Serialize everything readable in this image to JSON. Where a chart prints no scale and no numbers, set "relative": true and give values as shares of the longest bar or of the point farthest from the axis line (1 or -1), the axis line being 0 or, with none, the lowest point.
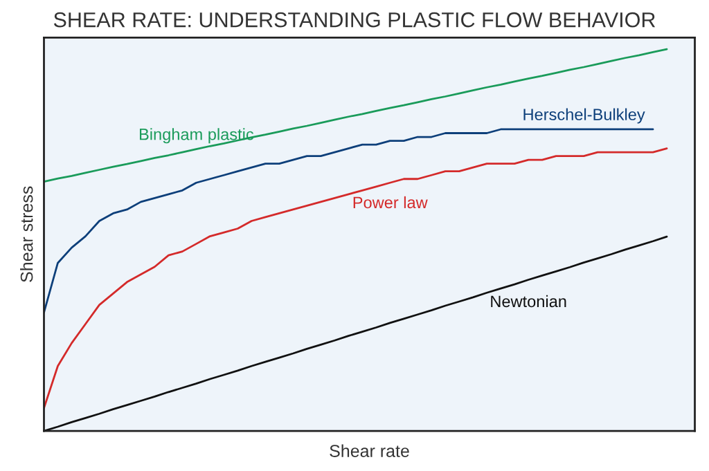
{
  "chart_data": {
    "type": "line",
    "title": "SHEAR RATE: UNDERSTANDING PLASTIC FLOW BEHAVIOR",
    "xlabel": "Shear rate",
    "ylabel": "Shear stress",
    "relative": true,
    "legend": false,
    "line_style": "solid",
    "marker": "none",
    "categories": [
      null,
      null,
      null,
      null,
      null,
      null,
      null,
      null,
      null,
      null,
      null,
      null,
      null,
      null,
      null,
      null,
      null,
      null,
      null,
      null,
      null,
      null,
      null,
      null,
      null,
      null,
      null,
      null,
      null,
      null,
      null,
      null,
      null,
      null,
      null,
      null,
      null,
      null,
      null,
      null,
      null,
      null,
      null,
      null,
      null,
      null
    ],
    "series": [
      {
        "name": "Bingham plastic",
        "color": "#1a9b5a",
        "values": [
          0.653,
          0.661,
          0.668,
          0.676,
          0.684,
          0.692,
          0.699,
          0.707,
          0.715,
          0.722,
          0.73,
          0.738,
          0.746,
          0.753,
          0.761,
          0.769,
          0.776,
          0.784,
          0.792,
          0.799,
          0.807,
          0.815,
          0.823,
          0.83,
          0.838,
          0.846,
          0.853,
          0.861,
          0.869,
          0.876,
          0.884,
          0.892,
          0.9,
          0.907,
          0.915,
          0.923,
          0.93,
          0.938,
          0.946,
          0.953,
          0.961,
          0.969,
          0.977,
          0.984,
          0.992,
          1.0
        ]
      },
      {
        "name": "Herschel-Bulkley",
        "color": "#0d3f7a",
        "values": [
          0.31,
          0.44,
          0.48,
          0.51,
          0.55,
          0.57,
          0.58,
          0.6,
          0.61,
          0.62,
          0.63,
          0.65,
          0.66,
          0.67,
          0.68,
          0.69,
          0.7,
          0.7,
          0.71,
          0.72,
          0.72,
          0.73,
          0.74,
          0.75,
          0.75,
          0.76,
          0.76,
          0.77,
          0.77,
          0.78,
          0.78,
          0.78,
          0.78,
          0.79,
          0.79,
          0.79,
          0.79,
          0.79,
          0.79,
          0.79,
          0.79,
          0.79,
          0.79,
          0.79,
          0.79,
          null
        ]
      },
      {
        "name": "Power law",
        "color": "#d42a2a",
        "values": [
          0.06,
          0.17,
          0.23,
          0.28,
          0.33,
          0.36,
          0.39,
          0.41,
          0.43,
          0.46,
          0.47,
          0.49,
          0.51,
          0.52,
          0.53,
          0.55,
          0.56,
          0.57,
          0.58,
          0.59,
          0.6,
          0.61,
          0.62,
          0.63,
          0.64,
          0.65,
          0.66,
          0.66,
          0.67,
          0.68,
          0.68,
          0.69,
          0.7,
          0.7,
          0.7,
          0.71,
          0.71,
          0.72,
          0.72,
          0.72,
          0.73,
          0.73,
          0.73,
          0.73,
          0.73,
          0.74
        ]
      },
      {
        "name": "Newtonian",
        "color": "#111111",
        "values": [
          0,
          0.011,
          0.023,
          0.034,
          0.045,
          0.057,
          0.068,
          0.079,
          0.09,
          0.102,
          0.113,
          0.124,
          0.136,
          0.147,
          0.158,
          0.17,
          0.181,
          0.192,
          0.203,
          0.215,
          0.226,
          0.237,
          0.249,
          0.26,
          0.271,
          0.283,
          0.294,
          0.305,
          0.316,
          0.328,
          0.339,
          0.35,
          0.362,
          0.373,
          0.384,
          0.396,
          0.407,
          0.418,
          0.429,
          0.441,
          0.452,
          0.463,
          0.475,
          0.486,
          0.497,
          0.509
        ]
      }
    ]
  }
}
